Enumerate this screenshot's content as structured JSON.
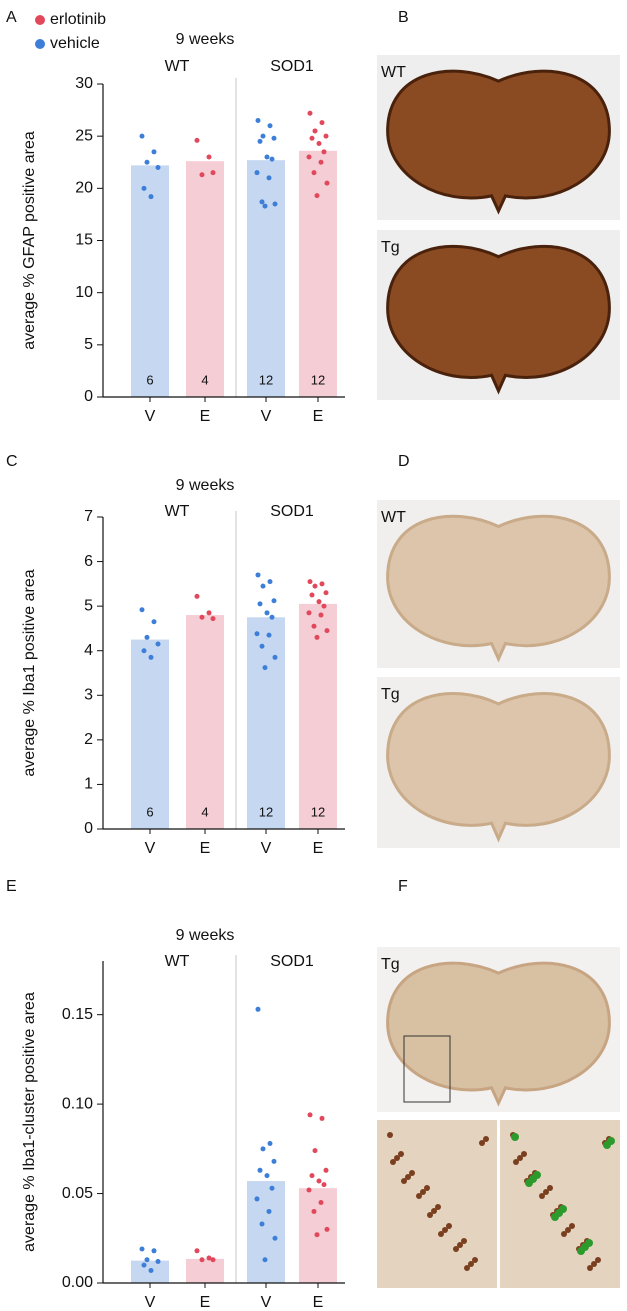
{
  "legend": [
    {
      "name": "erlotinib",
      "color": "#e2485c"
    },
    {
      "name": "vehicle",
      "color": "#3c7ed8"
    }
  ],
  "chart_data": [
    {
      "type": "bar",
      "panel": "A",
      "title": "9 weeks",
      "groups": [
        "WT",
        "SOD1"
      ],
      "y_label": "average % GFAP positive area",
      "categories": [
        "V",
        "E",
        "V",
        "E"
      ],
      "values": [
        22.2,
        22.6,
        22.7,
        23.6
      ],
      "n": [
        6,
        4,
        12,
        12
      ],
      "bar_colors": [
        "#c6d8f1",
        "#f5cdd4",
        "#c6d8f1",
        "#f5cdd4"
      ],
      "point_colors": [
        "#3c7ed8",
        "#e2485c",
        "#3c7ed8",
        "#e2485c"
      ],
      "points": [
        [
          25.0,
          23.5,
          22.5,
          22.0,
          20.0,
          19.2
        ],
        [
          24.6,
          23.0,
          21.3,
          21.5
        ],
        [
          26.5,
          26.0,
          25.0,
          24.8,
          24.5,
          23.0,
          22.8,
          21.5,
          21.0,
          18.7,
          18.5,
          18.3
        ],
        [
          27.2,
          26.3,
          25.5,
          25.0,
          24.8,
          24.3,
          23.5,
          23.0,
          22.5,
          21.5,
          20.5,
          19.3
        ]
      ],
      "ylim": [
        0,
        30
      ],
      "yticks": [
        0,
        5,
        10,
        15,
        20,
        25,
        30
      ]
    },
    {
      "type": "bar",
      "panel": "C",
      "title": "9 weeks",
      "groups": [
        "WT",
        "SOD1"
      ],
      "y_label": "average % Iba1 positive area",
      "categories": [
        "V",
        "E",
        "V",
        "E"
      ],
      "values": [
        4.25,
        4.8,
        4.75,
        5.05
      ],
      "n": [
        6,
        4,
        12,
        12
      ],
      "bar_colors": [
        "#c6d8f1",
        "#f5cdd4",
        "#c6d8f1",
        "#f5cdd4"
      ],
      "point_colors": [
        "#3c7ed8",
        "#e2485c",
        "#3c7ed8",
        "#e2485c"
      ],
      "points": [
        [
          4.92,
          4.65,
          4.3,
          4.15,
          4.0,
          3.85
        ],
        [
          5.22,
          4.85,
          4.75,
          4.72
        ],
        [
          5.7,
          5.55,
          5.45,
          5.12,
          5.05,
          4.85,
          4.75,
          4.38,
          4.35,
          4.1,
          3.85,
          3.62
        ],
        [
          5.55,
          5.5,
          5.45,
          5.3,
          5.25,
          5.1,
          5.0,
          4.85,
          4.8,
          4.55,
          4.45,
          4.3
        ]
      ],
      "ylim": [
        0,
        7
      ],
      "yticks": [
        0,
        1,
        2,
        3,
        4,
        5,
        6,
        7
      ]
    },
    {
      "type": "bar",
      "panel": "E",
      "title": "9 weeks",
      "groups": [
        "WT",
        "SOD1"
      ],
      "y_label": "average % Iba1-cluster positive area",
      "categories": [
        "V",
        "E",
        "V",
        "E"
      ],
      "values": [
        0.0125,
        0.0135,
        0.057,
        0.053
      ],
      "bar_colors": [
        "#c6d8f1",
        "#f5cdd4",
        "#c6d8f1",
        "#f5cdd4"
      ],
      "point_colors": [
        "#3c7ed8",
        "#e2485c",
        "#3c7ed8",
        "#e2485c"
      ],
      "points": [
        [
          0.019,
          0.018,
          0.013,
          0.012,
          0.01,
          0.007
        ],
        [
          0.018,
          0.014,
          0.013,
          0.013
        ],
        [
          0.153,
          0.078,
          0.075,
          0.068,
          0.063,
          0.06,
          0.053,
          0.047,
          0.04,
          0.033,
          0.025,
          0.013
        ],
        [
          0.094,
          0.092,
          0.074,
          0.063,
          0.06,
          0.057,
          0.055,
          0.052,
          0.045,
          0.04,
          0.03,
          0.027
        ]
      ],
      "ylim": [
        0,
        0.18
      ],
      "yticks": [
        {
          "value": 0,
          "label": "0.00"
        },
        0.05,
        {
          "value": 0.1,
          "label": "0.10"
        },
        0.15
      ]
    }
  ],
  "images": [
    {
      "panel": "B",
      "labels": [
        "WT",
        "Tg"
      ]
    },
    {
      "panel": "D",
      "labels": [
        "WT",
        "Tg"
      ]
    },
    {
      "panel": "F",
      "labels": [
        "Tg"
      ]
    }
  ]
}
